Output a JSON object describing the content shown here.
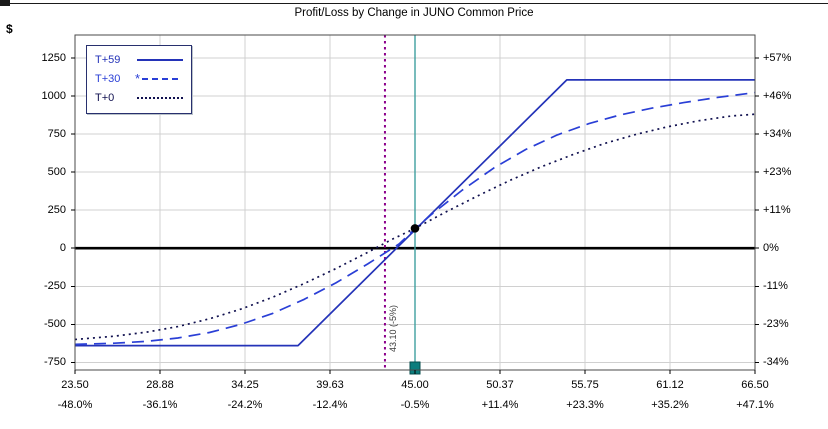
{
  "chart_data": {
    "type": "line",
    "title": "Profit/Loss by Change in JUNO Common Price",
    "y_axis_unit": "$",
    "xlim": [
      23.5,
      66.5
    ],
    "ylim": [
      -800,
      1400
    ],
    "grid": true,
    "legend_position": "top-left",
    "x_ticks": [
      {
        "value": 23.5,
        "price": "23.50",
        "pct": "-48.0%"
      },
      {
        "value": 28.875,
        "price": "28.88",
        "pct": "-36.1%"
      },
      {
        "value": 34.25,
        "price": "34.25",
        "pct": "-24.2%"
      },
      {
        "value": 39.625,
        "price": "39.63",
        "pct": "-12.4%"
      },
      {
        "value": 45.0,
        "price": "45.00",
        "pct": "-0.5%"
      },
      {
        "value": 50.375,
        "price": "50.37",
        "pct": "+11.4%"
      },
      {
        "value": 55.75,
        "price": "55.75",
        "pct": "+23.3%"
      },
      {
        "value": 61.125,
        "price": "61.12",
        "pct": "+35.2%"
      },
      {
        "value": 66.5,
        "price": "66.50",
        "pct": "+47.1%"
      }
    ],
    "y_ticks": [
      {
        "value": 1250,
        "dollar": "1250",
        "pct": "+57%"
      },
      {
        "value": 1000,
        "dollar": "1000",
        "pct": "+46%"
      },
      {
        "value": 750,
        "dollar": "750",
        "pct": "+34%"
      },
      {
        "value": 500,
        "dollar": "500",
        "pct": "+23%"
      },
      {
        "value": 250,
        "dollar": "250",
        "pct": "+11%"
      },
      {
        "value": 0,
        "dollar": "0",
        "pct": "0%"
      },
      {
        "value": -250,
        "dollar": "-250",
        "pct": "-11%"
      },
      {
        "value": -500,
        "dollar": "-500",
        "pct": "-23%"
      },
      {
        "value": -750,
        "dollar": "-750",
        "pct": "-34%"
      }
    ],
    "series": [
      {
        "name": "T+59",
        "style": "solid",
        "color": "#2433b8",
        "points": [
          [
            23.5,
            -640
          ],
          [
            37.6,
            -640
          ],
          [
            54.6,
            1105
          ],
          [
            66.5,
            1105
          ]
        ]
      },
      {
        "name": "T+30",
        "style": "dashed",
        "color": "#2a3fd6",
        "marker": "*",
        "points": [
          [
            23.5,
            -632
          ],
          [
            26,
            -624
          ],
          [
            28,
            -612
          ],
          [
            30,
            -590
          ],
          [
            32,
            -554
          ],
          [
            34,
            -500
          ],
          [
            36,
            -428
          ],
          [
            38,
            -336
          ],
          [
            40,
            -228
          ],
          [
            42,
            -104
          ],
          [
            44,
            28
          ],
          [
            45,
            128
          ],
          [
            46,
            218
          ],
          [
            48,
            382
          ],
          [
            50,
            528
          ],
          [
            52,
            648
          ],
          [
            54,
            744
          ],
          [
            56,
            818
          ],
          [
            58,
            876
          ],
          [
            60,
            920
          ],
          [
            62,
            956
          ],
          [
            64,
            988
          ],
          [
            66.5,
            1022
          ]
        ]
      },
      {
        "name": "T+0",
        "style": "dotted",
        "color": "#10104f",
        "points": [
          [
            23.5,
            -600
          ],
          [
            26,
            -578
          ],
          [
            28,
            -552
          ],
          [
            30,
            -515
          ],
          [
            32,
            -464
          ],
          [
            34,
            -400
          ],
          [
            36,
            -322
          ],
          [
            38,
            -232
          ],
          [
            40,
            -134
          ],
          [
            42,
            -28
          ],
          [
            43.5,
            56
          ],
          [
            45,
            130
          ],
          [
            47,
            240
          ],
          [
            49,
            345
          ],
          [
            51,
            445
          ],
          [
            53,
            535
          ],
          [
            55,
            615
          ],
          [
            57,
            688
          ],
          [
            59,
            748
          ],
          [
            61,
            798
          ],
          [
            63,
            838
          ],
          [
            65,
            868
          ],
          [
            66.5,
            880
          ]
        ]
      }
    ],
    "vlines": [
      {
        "x": 43.1,
        "label": "43.10 (-5%)",
        "color": "#8b008b",
        "style": "dotted",
        "name": "price-target-line"
      },
      {
        "x": 45.0,
        "label": "",
        "color": "#3f9f9f",
        "style": "solid",
        "name": "current-price-line"
      }
    ],
    "current_point": {
      "x": 45.0,
      "value": 130
    },
    "price_marker": {
      "x": 45.0,
      "color": "#0c7d7d",
      "border": "#064d4d"
    },
    "colors": {
      "grid": "#d0d0d0",
      "zero_line": "#000000",
      "border": "#4a4a4a",
      "background": "#ffffff",
      "annotation": "#3b3b3b",
      "tick": "#000000"
    }
  }
}
